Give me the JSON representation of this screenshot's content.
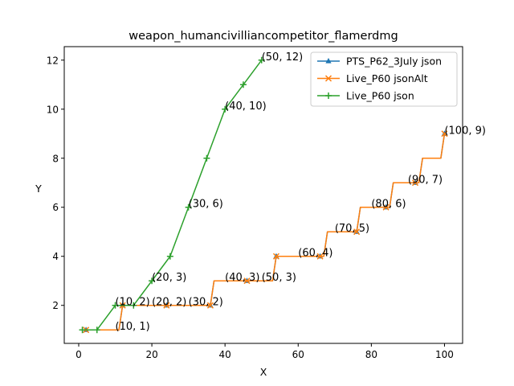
{
  "chart_data": {
    "type": "line",
    "title": "weapon_humancivilliancompetitor_flamerdmg",
    "xlabel": "X",
    "ylabel": "Y",
    "xlim": [
      -3.95,
      104.95
    ],
    "ylim": [
      0.45,
      12.55
    ],
    "xticks": [
      0,
      20,
      40,
      60,
      80,
      100
    ],
    "yticks": [
      2,
      4,
      6,
      8,
      10,
      12
    ],
    "grid": false,
    "legend_position": "upper right",
    "series": [
      {
        "name": "PTS_P62_3July json",
        "color": "#1f77b4",
        "marker": "triangle",
        "x": [
          1,
          2,
          3,
          4,
          5,
          6,
          7,
          8,
          9,
          10,
          11,
          12,
          13,
          14,
          15,
          16,
          17,
          18,
          19,
          20,
          21,
          22,
          23,
          24,
          25,
          26,
          27,
          28,
          29,
          30,
          31,
          32,
          33,
          34,
          35,
          36,
          37,
          38,
          39,
          40,
          41,
          42,
          43,
          44,
          45,
          46,
          47,
          48,
          49,
          50,
          51,
          52,
          53,
          54,
          55,
          56,
          57,
          58,
          59,
          60,
          61,
          62,
          63,
          64,
          65,
          66,
          67,
          68,
          69,
          70,
          71,
          72,
          73,
          74,
          75,
          76,
          77,
          78,
          79,
          80,
          81,
          82,
          83,
          84,
          85,
          86,
          87,
          88,
          89,
          90,
          91,
          92,
          93,
          94,
          95,
          96,
          97,
          98,
          99,
          100
        ],
        "y": [
          1,
          1,
          1,
          1,
          1,
          1,
          1,
          1,
          1,
          1,
          1,
          2,
          2,
          2,
          2,
          2,
          2,
          2,
          2,
          2,
          2,
          2,
          2,
          2,
          2,
          2,
          2,
          2,
          2,
          2,
          2,
          2,
          2,
          2,
          2,
          2,
          3,
          3,
          3,
          3,
          3,
          3,
          3,
          3,
          3,
          3,
          3,
          3,
          3,
          3,
          3,
          3,
          3,
          4,
          4,
          4,
          4,
          4,
          4,
          4,
          4,
          4,
          4,
          4,
          4,
          4,
          4,
          5,
          5,
          5,
          5,
          5,
          5,
          5,
          5,
          5,
          6,
          6,
          6,
          6,
          6,
          6,
          6,
          6,
          6,
          7,
          7,
          7,
          7,
          7,
          7,
          7,
          7,
          8,
          8,
          8,
          8,
          8,
          8,
          9
        ]
      },
      {
        "name": "Live_P60 jsonAlt",
        "color": "#ff7f0e",
        "marker": "x",
        "x": [
          1,
          2,
          3,
          4,
          5,
          6,
          7,
          8,
          9,
          10,
          11,
          12,
          13,
          14,
          15,
          16,
          17,
          18,
          19,
          20,
          21,
          22,
          23,
          24,
          25,
          26,
          27,
          28,
          29,
          30,
          31,
          32,
          33,
          34,
          35,
          36,
          37,
          38,
          39,
          40,
          41,
          42,
          43,
          44,
          45,
          46,
          47,
          48,
          49,
          50,
          51,
          52,
          53,
          54,
          55,
          56,
          57,
          58,
          59,
          60,
          61,
          62,
          63,
          64,
          65,
          66,
          67,
          68,
          69,
          70,
          71,
          72,
          73,
          74,
          75,
          76,
          77,
          78,
          79,
          80,
          81,
          82,
          83,
          84,
          85,
          86,
          87,
          88,
          89,
          90,
          91,
          92,
          93,
          94,
          95,
          96,
          97,
          98,
          99,
          100
        ],
        "y": [
          1,
          1,
          1,
          1,
          1,
          1,
          1,
          1,
          1,
          1,
          1,
          2,
          2,
          2,
          2,
          2,
          2,
          2,
          2,
          2,
          2,
          2,
          2,
          2,
          2,
          2,
          2,
          2,
          2,
          2,
          2,
          2,
          2,
          2,
          2,
          2,
          3,
          3,
          3,
          3,
          3,
          3,
          3,
          3,
          3,
          3,
          3,
          3,
          3,
          3,
          3,
          3,
          3,
          4,
          4,
          4,
          4,
          4,
          4,
          4,
          4,
          4,
          4,
          4,
          4,
          4,
          4,
          5,
          5,
          5,
          5,
          5,
          5,
          5,
          5,
          5,
          6,
          6,
          6,
          6,
          6,
          6,
          6,
          6,
          6,
          7,
          7,
          7,
          7,
          7,
          7,
          7,
          7,
          8,
          8,
          8,
          8,
          8,
          8,
          9
        ]
      },
      {
        "name": "Live_P60 json",
        "color": "#2ca02c",
        "marker": "plus",
        "x": [
          1,
          5,
          10,
          15,
          20,
          25,
          30,
          35,
          40,
          45,
          50
        ],
        "y": [
          1,
          1,
          2,
          2,
          3,
          4,
          6,
          8,
          10,
          11,
          12
        ]
      }
    ],
    "marker_points": {
      "PTS_P62_3July json": [
        [
          2,
          1
        ],
        [
          12,
          2
        ],
        [
          24,
          2
        ],
        [
          36,
          2
        ],
        [
          46,
          3
        ],
        [
          54,
          4
        ],
        [
          66,
          4
        ],
        [
          76,
          5
        ],
        [
          84,
          6
        ],
        [
          92,
          7
        ],
        [
          100,
          9
        ]
      ],
      "Live_P60 jsonAlt": [
        [
          2,
          1
        ],
        [
          12,
          2
        ],
        [
          24,
          2
        ],
        [
          36,
          2
        ],
        [
          46,
          3
        ],
        [
          54,
          4
        ],
        [
          66,
          4
        ],
        [
          76,
          5
        ],
        [
          84,
          6
        ],
        [
          92,
          7
        ],
        [
          100,
          9
        ]
      ]
    },
    "annotations": [
      {
        "text": "(10, 1)",
        "x": 10,
        "y": 1
      },
      {
        "text": "(10, 2)",
        "x": 10,
        "y": 2
      },
      {
        "text": "(20, 2)",
        "x": 20,
        "y": 2
      },
      {
        "text": "(30, 2)",
        "x": 30,
        "y": 2
      },
      {
        "text": "(20, 3)",
        "x": 20,
        "y": 3
      },
      {
        "text": "(40, 3)",
        "x": 40,
        "y": 3
      },
      {
        "text": "(50, 3)",
        "x": 50,
        "y": 3
      },
      {
        "text": "(30, 6)",
        "x": 30,
        "y": 6
      },
      {
        "text": "(40, 10)",
        "x": 40,
        "y": 10
      },
      {
        "text": "(50, 12)",
        "x": 50,
        "y": 12
      },
      {
        "text": "(60, 4)",
        "x": 60,
        "y": 4
      },
      {
        "text": "(70, 5)",
        "x": 70,
        "y": 5
      },
      {
        "text": "(80, 6)",
        "x": 80,
        "y": 6
      },
      {
        "text": "(90, 7)",
        "x": 90,
        "y": 7
      },
      {
        "text": "(100, 9)",
        "x": 100,
        "y": 9
      }
    ]
  }
}
